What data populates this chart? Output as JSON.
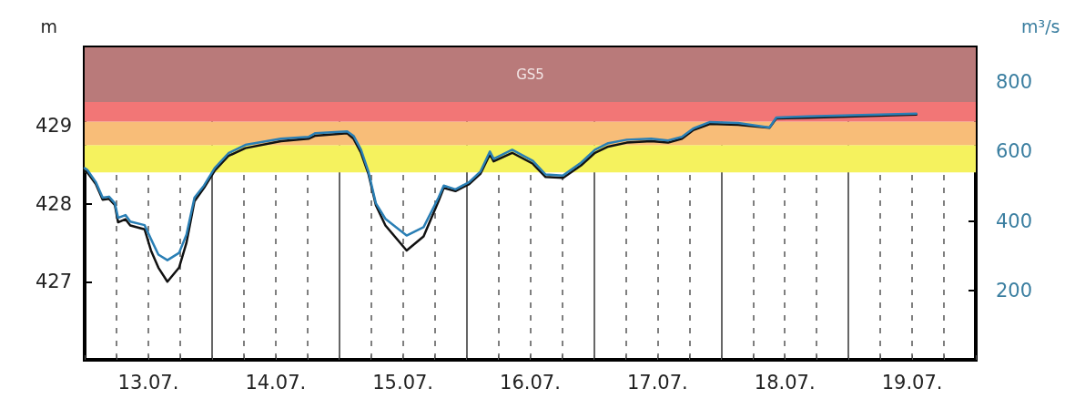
{
  "chart_data": {
    "type": "line",
    "ylabel": "m",
    "y2label": "m³/s",
    "xlim": [
      "--07-13T00:00",
      "--07-20T00:00"
    ],
    "xticks": [
      {
        "value": "--07-13T00:00",
        "label": null
      },
      {
        "value": "--07-13T06:00",
        "label": null
      },
      {
        "value": "--07-13T12:00",
        "label": "13.07."
      },
      {
        "value": "--07-13T18:00",
        "label": null
      },
      {
        "value": "--07-14T00:00",
        "label": null
      },
      {
        "value": "--07-14T06:00",
        "label": null
      },
      {
        "value": "--07-14T12:00",
        "label": "14.07."
      },
      {
        "value": "--07-14T18:00",
        "label": null
      },
      {
        "value": "--07-15T00:00",
        "label": null
      },
      {
        "value": "--07-15T06:00",
        "label": null
      },
      {
        "value": "--07-15T12:00",
        "label": "15.07."
      },
      {
        "value": "--07-15T18:00",
        "label": null
      },
      {
        "value": "--07-16T00:00",
        "label": null
      },
      {
        "value": "--07-16T06:00",
        "label": null
      },
      {
        "value": "--07-16T12:00",
        "label": "16.07."
      },
      {
        "value": "--07-16T18:00",
        "label": null
      },
      {
        "value": "--07-17T00:00",
        "label": null
      },
      {
        "value": "--07-17T06:00",
        "label": null
      },
      {
        "value": "--07-17T12:00",
        "label": "17.07."
      },
      {
        "value": "--07-17T18:00",
        "label": null
      },
      {
        "value": "--07-18T00:00",
        "label": null
      },
      {
        "value": "--07-18T06:00",
        "label": null
      },
      {
        "value": "--07-18T12:00",
        "label": "18.07."
      },
      {
        "value": "--07-18T18:00",
        "label": null
      },
      {
        "value": "--07-19T00:00",
        "label": null
      },
      {
        "value": "--07-19T06:00",
        "label": null
      },
      {
        "value": "--07-19T12:00",
        "label": "19.07."
      },
      {
        "value": "--07-19T18:00",
        "label": null
      },
      {
        "value": "--07-20T00:00",
        "label": null
      }
    ],
    "ylim": [
      426,
      430
    ],
    "yticks": [
      427,
      428,
      429
    ],
    "y2lim": [
      0,
      900
    ],
    "y2ticks": [
      200,
      400,
      600,
      800
    ],
    "grid": "x",
    "marker": "none",
    "line_style": "solid",
    "bands": [
      {
        "axis": "y",
        "from": 428.4,
        "to": 428.75,
        "color": "#f5f25e"
      },
      {
        "axis": "y",
        "from": 428.75,
        "to": 429.05,
        "color": "#f8bd78"
      },
      {
        "axis": "y",
        "from": 429.05,
        "to": 429.3,
        "color": "#f27676"
      },
      {
        "axis": "y",
        "from": 429.3,
        "to": 430,
        "label": "GS5",
        "color": "#b97a7a"
      }
    ],
    "x": [
      "--07-13T00:00",
      "--07-13T00:30",
      "--07-13T02:06",
      "--07-13T03:24",
      "--07-13T04:36",
      "--07-13T05:42",
      "--07-13T06:18",
      "--07-13T07:42",
      "--07-13T08:36",
      "--07-13T11:18",
      "--07-13T12:30",
      "--07-13T13:54",
      "--07-13T15:36",
      "--07-13T17:48",
      "--07-13T19:12",
      "--07-13T20:42",
      "--07-13T22:30",
      "--07-14T00:30",
      "--07-14T03:06",
      "--07-14T06:18",
      "--07-14T13:00",
      "--07-14T18:12",
      "--07-14T19:30",
      "--07-15T01:30",
      "--07-15T02:42",
      "--07-15T04:06",
      "--07-15T05:30",
      "--07-15T06:54",
      "--07-15T08:42",
      "--07-15T12:42",
      "--07-15T15:54",
      "--07-15T18:42",
      "--07-15T19:42",
      "--07-15T21:54",
      "--07-16T00:30",
      "--07-16T02:36",
      "--07-16T04:24",
      "--07-16T05:06",
      "--07-16T08:36",
      "--07-16T12:30",
      "--07-16T14:54",
      "--07-16T18:12",
      "--07-16T21:36",
      "--07-17T00:12",
      "--07-17T02:42",
      "--07-17T06:12",
      "--07-17T10:48",
      "--07-17T14:00",
      "--07-17T16:36",
      "--07-17T18:42",
      "--07-17T21:54",
      "--07-18T03:12",
      "--07-18T09:06",
      "--07-18T10:24",
      "--07-18T16:24",
      "--07-19T12:48"
    ],
    "series": [
      {
        "color": "#111111",
        "values": [
          428.42,
          428.4,
          428.25,
          428.05,
          428.06,
          427.98,
          427.76,
          427.8,
          427.72,
          427.67,
          427.4,
          427.18,
          427,
          427.18,
          427.5,
          428.03,
          428.2,
          428.42,
          428.61,
          428.71,
          428.8,
          428.83,
          428.87,
          428.9,
          428.83,
          428.65,
          428.38,
          427.98,
          427.72,
          427.4,
          427.58,
          428.03,
          428.2,
          428.16,
          428.25,
          428.38,
          428.63,
          428.54,
          428.65,
          428.51,
          428.34,
          428.33,
          428.49,
          428.65,
          428.73,
          428.78,
          428.8,
          428.78,
          428.83,
          428.94,
          429.02,
          429.01,
          428.97,
          429.09,
          429.1,
          429.14
        ]
      },
      {
        "color": "#2a7fb5",
        "axis": "y2",
        "values": [
          552,
          547,
          512,
          467,
          470,
          451,
          409,
          417,
          398,
          388,
          348,
          303,
          287,
          308,
          361,
          467,
          502,
          552,
          595,
          619,
          637,
          642,
          653,
          658,
          645,
          605,
          542,
          451,
          406,
          358,
          382,
          467,
          502,
          491,
          512,
          542,
          600,
          579,
          605,
          573,
          534,
          531,
          568,
          605,
          624,
          634,
          637,
          632,
          642,
          666,
          685,
          682,
          669,
          698,
          701,
          709
        ]
      }
    ]
  }
}
